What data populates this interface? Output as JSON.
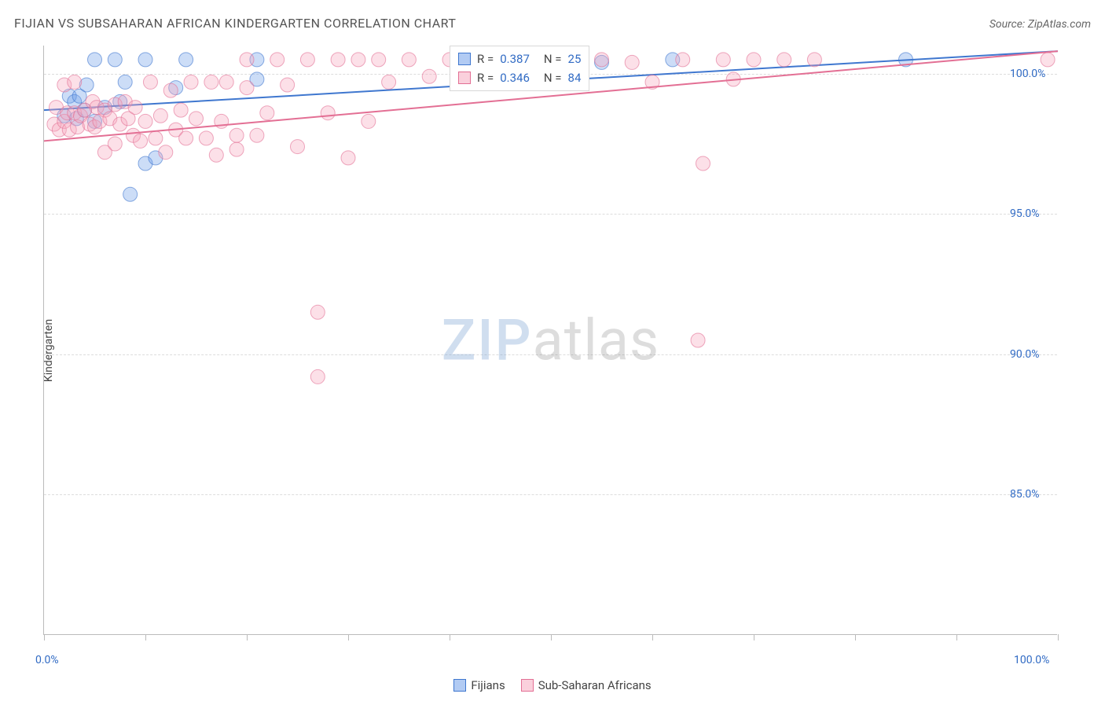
{
  "title": "FIJIAN VS SUBSAHARAN AFRICAN KINDERGARTEN CORRELATION CHART",
  "source_label": "Source: ZipAtlas.com",
  "y_axis_label": "Kindergarten",
  "watermark": {
    "zip": "ZIP",
    "atlas": "atlas"
  },
  "chart": {
    "type": "scatter",
    "background_color": "#ffffff",
    "grid_color": "#dddddd",
    "axis_color": "#bbbbbb",
    "xlim": [
      0,
      100
    ],
    "ylim": [
      80,
      101
    ],
    "ytick_values": [
      85,
      90,
      95,
      100
    ],
    "ytick_labels": [
      "85.0%",
      "90.0%",
      "95.0%",
      "100.0%"
    ],
    "xtick_positions": [
      0,
      10,
      20,
      30,
      40,
      50,
      60,
      70,
      80,
      90,
      100
    ],
    "xtick_label_left": "0.0%",
    "xtick_label_right": "100.0%",
    "marker_radius": 9,
    "marker_opacity": 0.35,
    "line_width": 2,
    "series": [
      {
        "key": "fijians",
        "label": "Fijians",
        "color": "#6e9ee8",
        "stroke": "#3f77cf",
        "r_label": "R =",
        "r_value": "0.387",
        "n_label": "N =",
        "n_value": "25",
        "trend": {
          "x1": 0,
          "y1": 98.7,
          "x2": 100,
          "y2": 100.8
        },
        "points": [
          [
            2,
            98.5
          ],
          [
            2.5,
            99.2
          ],
          [
            3,
            99.0
          ],
          [
            3.2,
            98.4
          ],
          [
            3.5,
            99.2
          ],
          [
            4,
            98.7
          ],
          [
            4.2,
            99.6
          ],
          [
            5,
            98.3
          ],
          [
            5,
            100.5
          ],
          [
            6,
            98.8
          ],
          [
            7,
            100.5
          ],
          [
            7.5,
            99.0
          ],
          [
            8,
            99.7
          ],
          [
            8.5,
            95.7
          ],
          [
            10,
            96.8
          ],
          [
            10,
            100.5
          ],
          [
            11,
            97.0
          ],
          [
            13,
            99.5
          ],
          [
            14,
            100.5
          ],
          [
            21,
            100.5
          ],
          [
            21,
            99.8
          ],
          [
            49,
            100.5
          ],
          [
            55,
            100.4
          ],
          [
            62,
            100.5
          ],
          [
            85,
            100.5
          ]
        ]
      },
      {
        "key": "subsaharan",
        "label": "Sub-Saharan Africans",
        "color": "#f6a6bd",
        "stroke": "#e36f94",
        "r_label": "R =",
        "r_value": "0.346",
        "n_label": "N =",
        "n_value": "84",
        "trend": {
          "x1": 0,
          "y1": 97.6,
          "x2": 100,
          "y2": 100.8
        },
        "points": [
          [
            1,
            98.2
          ],
          [
            1.2,
            98.8
          ],
          [
            1.5,
            98.0
          ],
          [
            2,
            98.3
          ],
          [
            2,
            99.6
          ],
          [
            2.3,
            98.6
          ],
          [
            2.5,
            98.0
          ],
          [
            3,
            98.6
          ],
          [
            3,
            99.7
          ],
          [
            3.3,
            98.1
          ],
          [
            3.6,
            98.5
          ],
          [
            4,
            98.7
          ],
          [
            4.5,
            98.2
          ],
          [
            4.8,
            99.0
          ],
          [
            5,
            98.1
          ],
          [
            5.2,
            98.8
          ],
          [
            5.5,
            98.3
          ],
          [
            6,
            98.7
          ],
          [
            6,
            97.2
          ],
          [
            6.5,
            98.4
          ],
          [
            7,
            98.9
          ],
          [
            7,
            97.5
          ],
          [
            7.5,
            98.2
          ],
          [
            8,
            99.0
          ],
          [
            8.3,
            98.4
          ],
          [
            8.8,
            97.8
          ],
          [
            9,
            98.8
          ],
          [
            9.5,
            97.6
          ],
          [
            10,
            98.3
          ],
          [
            10.5,
            99.7
          ],
          [
            11,
            97.7
          ],
          [
            11.5,
            98.5
          ],
          [
            12,
            97.2
          ],
          [
            12.5,
            99.4
          ],
          [
            13,
            98.0
          ],
          [
            13.5,
            98.7
          ],
          [
            14,
            97.7
          ],
          [
            14.5,
            99.7
          ],
          [
            15,
            98.4
          ],
          [
            16,
            97.7
          ],
          [
            16.5,
            99.7
          ],
          [
            17,
            97.1
          ],
          [
            17.5,
            98.3
          ],
          [
            18,
            99.7
          ],
          [
            19,
            97.3
          ],
          [
            19,
            97.8
          ],
          [
            20,
            99.5
          ],
          [
            20,
            100.5
          ],
          [
            21,
            97.8
          ],
          [
            22,
            98.6
          ],
          [
            23,
            100.5
          ],
          [
            24,
            99.6
          ],
          [
            25,
            97.4
          ],
          [
            26,
            100.5
          ],
          [
            27,
            89.2
          ],
          [
            27,
            91.5
          ],
          [
            28,
            98.6
          ],
          [
            29,
            100.5
          ],
          [
            30,
            97.0
          ],
          [
            31,
            100.5
          ],
          [
            32,
            98.3
          ],
          [
            33,
            100.5
          ],
          [
            34,
            99.7
          ],
          [
            36,
            100.5
          ],
          [
            38,
            99.9
          ],
          [
            40,
            100.5
          ],
          [
            42,
            100.4
          ],
          [
            44,
            100.5
          ],
          [
            46,
            100.3
          ],
          [
            48,
            100.5
          ],
          [
            50,
            100.5
          ],
          [
            52,
            100.3
          ],
          [
            55,
            100.5
          ],
          [
            58,
            100.4
          ],
          [
            60,
            99.7
          ],
          [
            63,
            100.5
          ],
          [
            64.5,
            90.5
          ],
          [
            65,
            96.8
          ],
          [
            67,
            100.5
          ],
          [
            68,
            99.8
          ],
          [
            70,
            100.5
          ],
          [
            73,
            100.5
          ],
          [
            76,
            100.5
          ],
          [
            99,
            100.5
          ]
        ]
      }
    ]
  },
  "legend_bottom": [
    {
      "label": "Fijians",
      "color": "#6e9ee8",
      "stroke": "#3f77cf"
    },
    {
      "label": "Sub-Saharan Africans",
      "color": "#f6a6bd",
      "stroke": "#e36f94"
    }
  ]
}
